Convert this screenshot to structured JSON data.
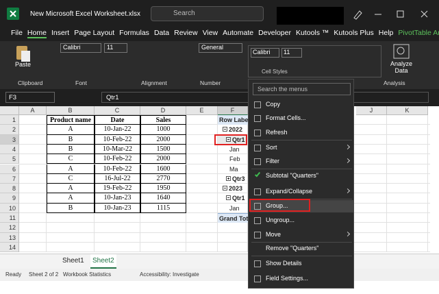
{
  "title_bar": {
    "filename": "New Microsoft Excel Worksheet.xlsx",
    "search": "Search"
  },
  "ribbon_tabs": [
    "File",
    "Home",
    "Insert",
    "Page Layout",
    "Formulas",
    "Data",
    "Review",
    "View",
    "Automate",
    "Developer",
    "Kutools ™",
    "Kutools Plus",
    "Help",
    "PivotTable Analyze"
  ],
  "ribbon": {
    "paste": "Paste",
    "font_name": "Calibri",
    "font_size": "11",
    "number_format": "General",
    "analyze_data": "Analyze Data",
    "cell_styles": "Cell Styles",
    "groups": [
      "Clipboard",
      "Font",
      "Alignment",
      "Number",
      "Analysis"
    ]
  },
  "mini_toolbar": {
    "font_name": "Calibri",
    "font_size": "11"
  },
  "formula_bar": {
    "name_box": "F3",
    "formula": "Qtr1"
  },
  "columns": [
    "A",
    "B",
    "C",
    "D",
    "E",
    "F",
    "J",
    "K"
  ],
  "rows": [
    1,
    2,
    3,
    4,
    5,
    6,
    7,
    8,
    9,
    10,
    11,
    12,
    13,
    14
  ],
  "table": {
    "header": [
      "Product name",
      "Date",
      "Sales"
    ],
    "rows": [
      [
        "A",
        "10-Jan-22",
        1000
      ],
      [
        "B",
        "10-Feb-22",
        2000
      ],
      [
        "B",
        "10-Mar-22",
        1500
      ],
      [
        "C",
        "10-Feb-22",
        2000
      ],
      [
        "A",
        "10-Feb-22",
        1600
      ],
      [
        "C",
        "16-Jul-22",
        2770
      ],
      [
        "A",
        "19-Feb-22",
        1950
      ],
      [
        "A",
        "10-Jan-23",
        1640
      ],
      [
        "B",
        "10-Jan-23",
        1115
      ]
    ]
  },
  "pivot": {
    "cells": [
      "Row Label",
      "2022",
      "Qtr1",
      "Jan",
      "Feb",
      "Ma",
      "Qtr3",
      "2023",
      "Qtr1",
      "Jan",
      "Grand Tot"
    ]
  },
  "context_menu": {
    "search": "Search the menus",
    "items": [
      "Copy",
      "Format Cells...",
      "Refresh",
      "Sort",
      "Filter",
      "Subtotal \"Quarters\"",
      "Expand/Collapse",
      "Group...",
      "Ungroup...",
      "Move",
      "Remove \"Quarters\"",
      "Show Details",
      "Field Settings..."
    ]
  },
  "sheet_tabs": [
    "Sheet1",
    "Sheet2"
  ],
  "status_bar": {
    "ready": "Ready",
    "sheet": "Sheet 2 of 2",
    "stats": "Workbook Statistics",
    "accessibility": "Accessibility: Investigate"
  }
}
